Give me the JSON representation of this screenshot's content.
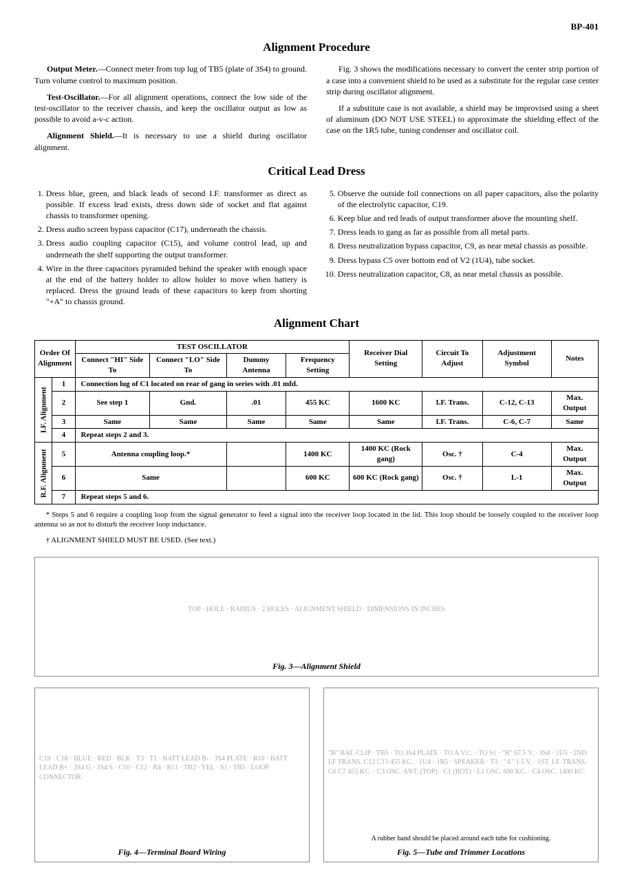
{
  "page_id": "BP-401",
  "headings": {
    "alignment_procedure": "Alignment Procedure",
    "critical_lead_dress": "Critical Lead Dress",
    "alignment_chart": "Alignment Chart"
  },
  "procedure": {
    "output_meter_label": "Output Meter.",
    "output_meter_text": "—Connect meter from top lug of TB5 (plate of 3S4) to ground. Turn volume control to maximum position.",
    "test_osc_label": "Test-Oscillator.",
    "test_osc_text": "—For all alignment operations, connect the low side of the test-oscillator to the receiver chassis, and keep the oscillator output as low as possible to avoid a-v-c action.",
    "shield_label": "Alignment Shield.",
    "shield_text": "—It is necessary to use a shield during oscillator alignment.",
    "right_p1": "Fig. 3 shows the modifications necessary to convert the center strip portion of a case into a convenient shield to be used as a substitute for the regular case center strip during oscillator alignment.",
    "right_p2": "If a substitute case is not available, a shield may be improvised using a sheet of aluminum (DO NOT USE STEEL) to approximate the shielding effect of the case on the 1R5 tube, tuning condenser and oscillator coil."
  },
  "lead_dress": {
    "left": [
      "Dress blue, green, and black leads of second I.F. transformer as direct as possible. If excess lead exists, dress down side of socket and flat against chassis to transformer opening.",
      "Dress audio screen bypass capacitor (C17), underneath the chassis.",
      "Dress audio coupling capacitor (C15), and volume control lead, up and underneath the shelf supporting the output transformer.",
      "Wire in the three capacitors pyramided behind the speaker with enough space at the end of the battery holder to allow holder to move when battery is replaced. Dress the ground leads of these capacitors to keep from shorting \"+A\" to chassis ground."
    ],
    "right": [
      "Observe the outside foil connections on all paper capacitors, also the polarity of the electrolytic capacitor, C19.",
      "Keep blue and red leads of output transformer above the mounting shelf.",
      "Dress leads to gang as far as possible from all metal parts.",
      "Dress neutralization bypass capacitor, C9, as near metal chassis as possible.",
      "Dress bypass C5 over bottom end of V2 (1U4), tube socket.",
      "Dress neutralization capacitor, C8, as near metal chassis as possible."
    ]
  },
  "chart": {
    "headers": {
      "order": "Order Of Alignment",
      "test_osc": "TEST OSCILLATOR",
      "hi": "Connect \"HI\" Side To",
      "lo": "Connect \"LO\" Side To",
      "dummy": "Dummy Antenna",
      "freq": "Frequency Setting",
      "dial": "Receiver Dial Setting",
      "circuit": "Circuit To Adjust",
      "adjsym": "Adjustment Symbol",
      "notes": "Notes"
    },
    "group_if": "I.F. Alignment",
    "group_rf": "R.F. Alignment",
    "rows": [
      {
        "n": "1",
        "span": "Connection lug of C1 located on rear of gang in series with .01 mfd."
      },
      {
        "n": "2",
        "hi": "See step 1",
        "lo": "Gnd.",
        "dummy": ".01",
        "freq": "455 KC",
        "dial": "1600 KC",
        "circuit": "I.F. Trans.",
        "adj": "C-12, C-13",
        "notes": "Max. Output"
      },
      {
        "n": "3",
        "hi": "Same",
        "lo": "Same",
        "dummy": "Same",
        "freq": "Same",
        "dial": "Same",
        "circuit": "I.F. Trans.",
        "adj": "C-6, C-7",
        "notes": "Same"
      },
      {
        "n": "4",
        "span": "Repeat steps 2 and 3."
      },
      {
        "n": "5",
        "hilo": "Antenna coupling loop.*",
        "dummy": "",
        "freq": "1400 KC",
        "dial": "1400 KC (Rock gang)",
        "circuit": "Osc. †",
        "adj": "C-4",
        "notes": "Max. Output"
      },
      {
        "n": "6",
        "hilo": "Same",
        "dummy": "",
        "freq": "600 KC",
        "dial": "600 KC (Rock gang)",
        "circuit": "Osc. †",
        "adj": "L-1",
        "notes": "Max. Output"
      },
      {
        "n": "7",
        "span": "Repeat steps 5 and 6."
      }
    ]
  },
  "footnotes": {
    "star": "* Steps 5 and 6 require a coupling loop from the signal generator to feed a signal into the receiver loop located in the lid. This loop should be loosely coupled to the receiver loop antenna so as not to disturb the receiver loop inductance.",
    "dagger": "† ALIGNMENT SHIELD MUST BE USED. (See text.)"
  },
  "figures": {
    "fig3_caption": "Fig. 3—Alignment Shield",
    "fig3_labels": "TOP · HOLE · RADIUS · 2 HOLES · ALIGNMENT SHIELD · DIMENSIONS IN INCHES",
    "fig4_caption": "Fig. 4—Terminal Board Wiring",
    "fig4_labels": "C19 · C18 · BLUE · RED · BLK · T3 · T1 · BATT LEAD B- · 3S4 PLATE · R10 · BATT LEAD B+ · 3S4 G · 3S4 S · C10 · C12 · R4 · R11 · TB2 · YEL · S1 · TB5 · LOOP CONNECTOR",
    "fig5_caption": "Fig. 5—Tube and Trimmer Locations",
    "fig5_note": "A rubber band should be placed around each tube for cushioning.",
    "fig5_labels": "\"B\" BAT. CLIP · TB5 · TO 3S4 PLATE · TO A.V.C. · TO S1 · \"B\" 67.5 V. · 3S4 · 1U5 · 2ND I.F TRANS. C12 C13 455 KC. · 1U4 · 1R5 · SPEAKER · T3 · \"A\" 1.5 V. · 1ST. I.F. TRANS. C6 C7 455 KC. · C3 OSC. ANT. (TOP) · C1 (BOT) · L1 OSC. 600 KC. · C4 OSC. 1400 KC."
  }
}
